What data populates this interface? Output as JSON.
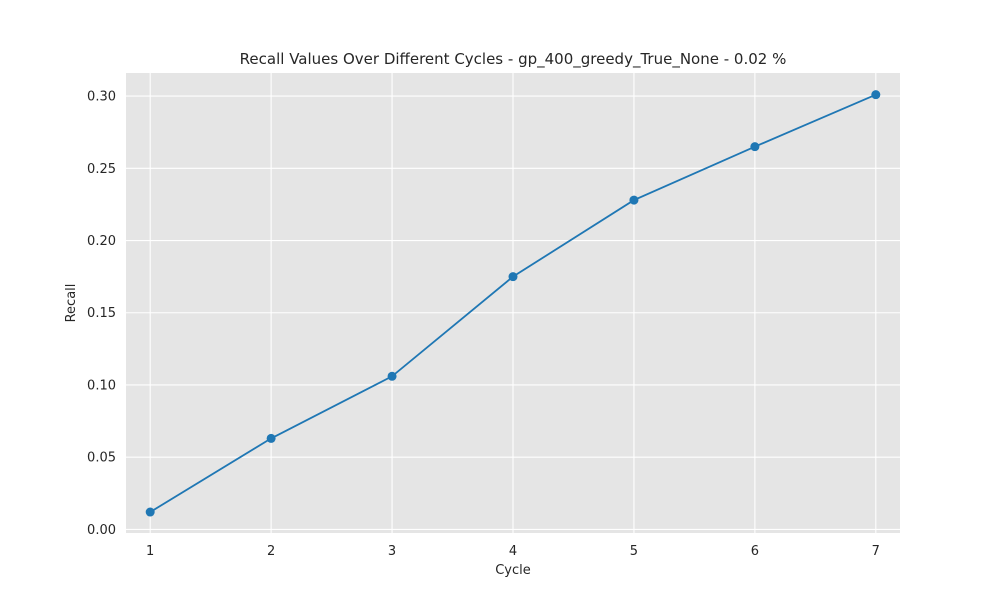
{
  "chart_data": {
    "type": "line",
    "title": "Recall Values Over Different Cycles - gp_400_greedy_True_None - 0.02 %",
    "xlabel": "Cycle",
    "ylabel": "Recall",
    "x": [
      1,
      2,
      3,
      4,
      5,
      6,
      7
    ],
    "series": [
      {
        "values": [
          0.012,
          0.063,
          0.106,
          0.175,
          0.228,
          0.265,
          0.301
        ],
        "color": "#1f77b4",
        "marker": "circle"
      }
    ],
    "xlim": [
      0.8,
      7.2
    ],
    "ylim": [
      -0.0025,
      0.316
    ],
    "xticks": [
      1,
      2,
      3,
      4,
      5,
      6,
      7
    ],
    "yticks": [
      0.0,
      0.05,
      0.1,
      0.15,
      0.2,
      0.25,
      0.3
    ],
    "ytick_labels": [
      "0.00",
      "0.05",
      "0.10",
      "0.15",
      "0.20",
      "0.25",
      "0.30"
    ],
    "grid": true,
    "background": "#e5e5e5"
  }
}
